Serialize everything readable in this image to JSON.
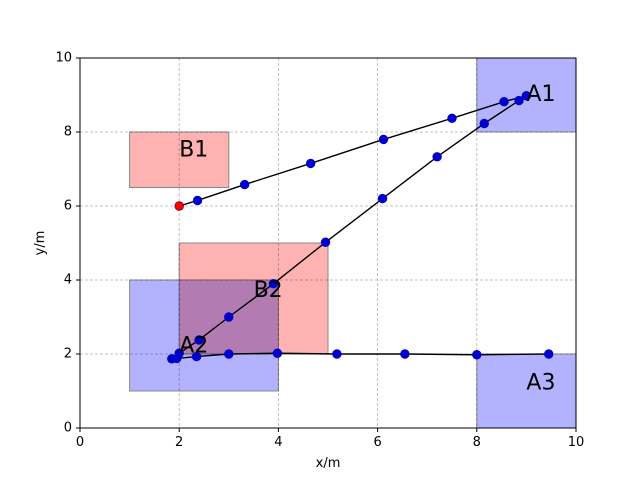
{
  "chart_data": {
    "type": "scatter",
    "title": "",
    "xlabel": "x/m",
    "ylabel": "y/m",
    "xlim": [
      0,
      10
    ],
    "ylim": [
      0,
      10
    ],
    "grid": true,
    "x_ticks": [
      0,
      2,
      4,
      6,
      8,
      10
    ],
    "y_ticks": [
      0,
      2,
      4,
      6,
      8,
      10
    ],
    "regions": [
      {
        "label": "A1",
        "x0": 8,
        "x1": 10,
        "y0": 8,
        "y1": 10,
        "color": "#b0b0ff"
      },
      {
        "label": "B1",
        "x0": 1,
        "x1": 3,
        "y0": 6.5,
        "y1": 8,
        "color": "#ffb0b0"
      },
      {
        "label": "A2",
        "x0": 1,
        "x1": 4,
        "y0": 1,
        "y1": 4,
        "color": "#b0b0ff"
      },
      {
        "label": "B2",
        "x0": 2,
        "x1": 5,
        "y0": 2,
        "y1": 5,
        "color": "#ffb0b0"
      },
      {
        "label": "A3",
        "x0": 8,
        "x1": 10,
        "y0": 0,
        "y1": 2,
        "color": "#b0b0ff"
      }
    ],
    "start_point": {
      "x": 2.0,
      "y": 6.0,
      "color": "#ff0000"
    },
    "series": [
      {
        "color": "#0000cc",
        "x": [
          2.0,
          2.37,
          3.32,
          4.65,
          6.12,
          7.5,
          8.55,
          9.0,
          8.85,
          8.15,
          7.2,
          6.1,
          4.95,
          3.9,
          3.0,
          2.4,
          2.0,
          1.85,
          1.95,
          2.35,
          3.0,
          3.98,
          5.18,
          6.55,
          8.0,
          9.45
        ],
        "y": [
          6.0,
          6.15,
          6.58,
          7.15,
          7.8,
          8.37,
          8.82,
          8.98,
          8.85,
          8.23,
          7.33,
          6.2,
          5.02,
          3.9,
          3.0,
          2.38,
          2.02,
          1.87,
          1.88,
          1.93,
          2.0,
          2.02,
          2.0,
          2.0,
          1.98,
          2.0
        ]
      }
    ]
  }
}
